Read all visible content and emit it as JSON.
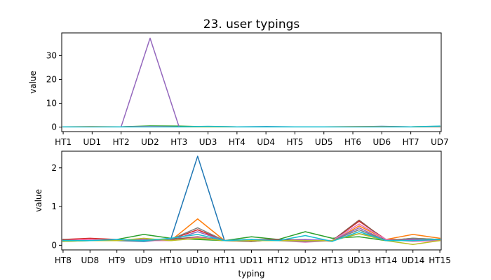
{
  "colors": [
    "#1f77b4",
    "#ff7f0e",
    "#2ca02c",
    "#d62728",
    "#9467bd",
    "#8c564b",
    "#e377c2",
    "#7f7f7f",
    "#bcbd22",
    "#17becf"
  ],
  "chart_data": [
    {
      "type": "line",
      "title": "23. user typings",
      "xlabel": "",
      "ylabel": "value",
      "ylim": [
        -1.9,
        39.5
      ],
      "yticks": [
        0,
        10,
        20,
        30
      ],
      "categories": [
        "HT1",
        "UD1",
        "HT2",
        "UD2",
        "HT3",
        "UD3",
        "HT4",
        "UD4",
        "HT5",
        "UD5",
        "HT6",
        "UD6",
        "HT7",
        "UD7"
      ],
      "series": [
        {
          "values": [
            0.1,
            0.1,
            0.1,
            0.3,
            0.1,
            0.2,
            0.1,
            0.2,
            0.1,
            0.1,
            0.1,
            0.3,
            0.1,
            0.2
          ]
        },
        {
          "values": [
            0.1,
            0.2,
            0.1,
            0.2,
            0.1,
            0.2,
            0.1,
            0.1,
            0.1,
            0.1,
            0.2,
            0.2,
            0.1,
            0.2
          ]
        },
        {
          "values": [
            0.1,
            0.1,
            0.1,
            0.5,
            0.4,
            0.1,
            0.1,
            0.1,
            0.1,
            0.1,
            0.1,
            0.1,
            0.1,
            0.1
          ]
        },
        {
          "values": [
            0.1,
            0.1,
            0.1,
            0.2,
            0.1,
            0.1,
            0.1,
            0.1,
            0.1,
            0.1,
            0.1,
            0.1,
            0.1,
            0.1
          ]
        },
        {
          "values": [
            0.1,
            0.1,
            0.1,
            37.3,
            0.1,
            0.1,
            0.1,
            0.1,
            0.1,
            0.1,
            0.1,
            0.1,
            0.1,
            0.1
          ]
        },
        {
          "values": [
            0.1,
            0.1,
            0.1,
            0.2,
            0.1,
            0.1,
            0.1,
            0.1,
            0.1,
            0.1,
            0.1,
            0.1,
            0.1,
            0.1
          ]
        },
        {
          "values": [
            0.1,
            0.1,
            0.1,
            0.2,
            0.1,
            0.1,
            0.1,
            0.1,
            0.1,
            0.1,
            0.1,
            0.1,
            0.1,
            0.1
          ]
        },
        {
          "values": [
            0.1,
            0.1,
            0.1,
            0.1,
            0.1,
            0.1,
            0.1,
            0.1,
            0.1,
            0.1,
            0.1,
            0.1,
            0.1,
            0.2
          ]
        },
        {
          "values": [
            0.1,
            0.1,
            0.1,
            0.1,
            0.1,
            0.1,
            0.1,
            0.1,
            0.1,
            0.1,
            0.1,
            0.1,
            0.1,
            0.3
          ]
        },
        {
          "values": [
            0.1,
            0.1,
            0.1,
            0.1,
            0.1,
            0.3,
            0.1,
            0.1,
            0.1,
            0.1,
            0.1,
            0.1,
            0.1,
            0.4
          ]
        }
      ]
    },
    {
      "type": "line",
      "title": "",
      "xlabel": "typing",
      "ylabel": "value",
      "ylim": [
        -0.12,
        2.43
      ],
      "yticks": [
        0,
        1,
        2
      ],
      "categories": [
        "HT8",
        "UD8",
        "HT9",
        "UD9",
        "HT10",
        "UD10",
        "HT11",
        "UD11",
        "HT12",
        "UD12",
        "HT13",
        "UD13",
        "HT14",
        "UD14",
        "HT15"
      ],
      "series": [
        {
          "values": [
            0.15,
            0.12,
            0.12,
            0.1,
            0.15,
            2.3,
            0.12,
            0.1,
            0.15,
            0.1,
            0.12,
            0.3,
            0.15,
            0.12,
            0.15
          ]
        },
        {
          "values": [
            0.12,
            0.15,
            0.12,
            0.15,
            0.12,
            0.68,
            0.12,
            0.15,
            0.12,
            0.15,
            0.1,
            0.5,
            0.15,
            0.28,
            0.18
          ]
        },
        {
          "values": [
            0.1,
            0.12,
            0.15,
            0.28,
            0.18,
            0.15,
            0.12,
            0.22,
            0.15,
            0.35,
            0.18,
            0.22,
            0.12,
            0.18,
            0.15
          ]
        },
        {
          "values": [
            0.15,
            0.18,
            0.15,
            0.12,
            0.15,
            0.4,
            0.12,
            0.15,
            0.15,
            0.12,
            0.12,
            0.62,
            0.15,
            0.15,
            0.12
          ]
        },
        {
          "values": [
            0.12,
            0.12,
            0.12,
            0.15,
            0.12,
            0.35,
            0.12,
            0.15,
            0.12,
            0.15,
            0.12,
            0.45,
            0.12,
            0.15,
            0.12
          ]
        },
        {
          "values": [
            0.15,
            0.12,
            0.12,
            0.12,
            0.15,
            0.22,
            0.12,
            0.1,
            0.15,
            0.12,
            0.12,
            0.65,
            0.12,
            0.12,
            0.12
          ]
        },
        {
          "values": [
            0.12,
            0.15,
            0.12,
            0.12,
            0.12,
            0.2,
            0.12,
            0.12,
            0.12,
            0.08,
            0.12,
            0.55,
            0.15,
            0.1,
            0.12
          ]
        },
        {
          "values": [
            0.12,
            0.12,
            0.12,
            0.12,
            0.15,
            0.45,
            0.12,
            0.12,
            0.12,
            0.1,
            0.12,
            0.4,
            0.12,
            0.18,
            0.15
          ]
        },
        {
          "values": [
            0.1,
            0.12,
            0.12,
            0.18,
            0.12,
            0.18,
            0.12,
            0.12,
            0.12,
            0.12,
            0.12,
            0.3,
            0.12,
            0.02,
            0.12
          ]
        },
        {
          "values": [
            0.12,
            0.12,
            0.15,
            0.12,
            0.18,
            0.28,
            0.12,
            0.15,
            0.12,
            0.25,
            0.1,
            0.35,
            0.12,
            0.12,
            0.15
          ]
        }
      ]
    }
  ]
}
